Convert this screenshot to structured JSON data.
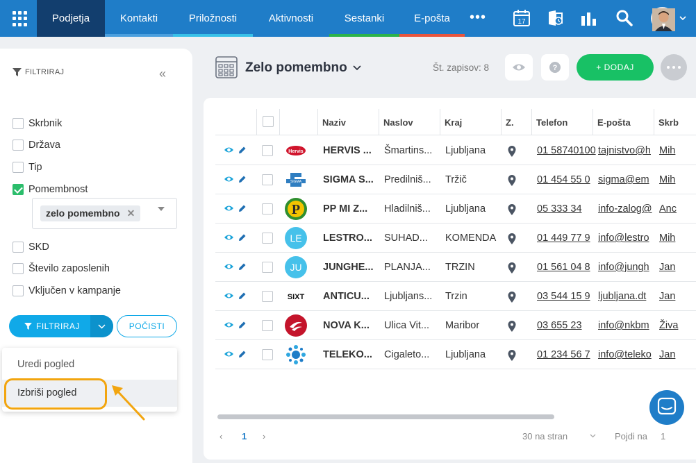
{
  "nav": {
    "tabs": [
      {
        "label": "Podjetja",
        "accent": ""
      },
      {
        "label": "Kontakti",
        "accent": "#4b9fde"
      },
      {
        "label": "Priložnosti",
        "accent": "#38c1e8"
      },
      {
        "label": "Aktivnosti",
        "accent": ""
      },
      {
        "label": "Sestanki",
        "accent": "#2bb34a"
      },
      {
        "label": "E-pošta",
        "accent": "#e8543c"
      }
    ],
    "more": "•••",
    "calendar_day": "17",
    "icons": [
      "apps-grid-icon",
      "calendar-icon",
      "exchange-icon",
      "analytics-icon",
      "search-icon",
      "user-avatar",
      "chevron-down-icon"
    ]
  },
  "filter_panel": {
    "heading": "FILTRIRAJ",
    "collapse": "«",
    "filters": [
      {
        "label": "Skrbnik",
        "checked": false
      },
      {
        "label": "Država",
        "checked": false
      },
      {
        "label": "Tip",
        "checked": false
      },
      {
        "label": "Pomembnost",
        "checked": true
      },
      {
        "label": "SKD",
        "checked": false
      },
      {
        "label": "Število zaposlenih",
        "checked": false
      },
      {
        "label": "Vključen v kampanje",
        "checked": false
      }
    ],
    "selected_tag": "zelo pomembno",
    "filter_button": "FILTRIRAJ",
    "clear_button": "POČISTI",
    "dropdown": [
      "Uredi pogled",
      "Izbriši pogled"
    ],
    "highlight_color": "#f2a50f"
  },
  "view": {
    "title": "Zelo pomembno",
    "record_count": "Št. zapisov: 8",
    "add_button": "+  DODAJ"
  },
  "table": {
    "columns": [
      "Naziv",
      "Naslov",
      "Kraj",
      "Z.",
      "Telefon",
      "E-pošta",
      "Skrb"
    ],
    "rows": [
      {
        "name": "HERVIS ...",
        "address": "Šmartins...",
        "city": "Ljubljana",
        "phone": "01 58740100",
        "email": "tajnistvo@h",
        "owner": "Mih",
        "logo": "hervis"
      },
      {
        "name": "SIGMA S...",
        "address": "Predilniš...",
        "city": "Tržič",
        "phone": "01 454 55 0",
        "email": "sigma@em",
        "owner": "Mih",
        "logo": "sigma"
      },
      {
        "name": "PP MI Z...",
        "address": "Hladilniš...",
        "city": "Ljubljana",
        "phone": "05 333 34",
        "email": "info-zalog@",
        "owner": "Anc",
        "logo": "pp"
      },
      {
        "name": "LESTRO...",
        "address": "SUHAD...",
        "city": "KOMENDA",
        "phone": "01 449 77 9",
        "email": "info@lestro",
        "owner": "Mih",
        "logo": "LE"
      },
      {
        "name": "JUNGHE...",
        "address": "PLANJA...",
        "city": "TRZIN",
        "phone": "01 561 04 8",
        "email": "info@jungh",
        "owner": "Jan",
        "logo": "JU"
      },
      {
        "name": "ANTICU...",
        "address": "Ljubljans...",
        "city": "Trzin",
        "phone": "03 544 15 9",
        "email": "ljubljana.dt",
        "owner": "Jan",
        "logo": "sixt"
      },
      {
        "name": "NOVA K...",
        "address": "Ulica Vit...",
        "city": "Maribor",
        "phone": "03 655 23",
        "email": "info@nkbm",
        "owner": "Živa",
        "logo": "nkbm"
      },
      {
        "name": "TELEKO...",
        "address": "Cigaleto...",
        "city": "Ljubljana",
        "phone": "01 234 56 7",
        "email": "info@teleko",
        "owner": "Jan",
        "logo": "telekom"
      }
    ]
  },
  "pagination": {
    "prev": "‹",
    "current": "1",
    "next": "›",
    "per_page": "30 na stran",
    "goto_label": "Pojdi na",
    "goto_value": "1"
  },
  "colors": {
    "nav": "#1f7dc8",
    "nav_active": "#123e6e",
    "primary": "#10a9e8",
    "add": "#18c165"
  }
}
